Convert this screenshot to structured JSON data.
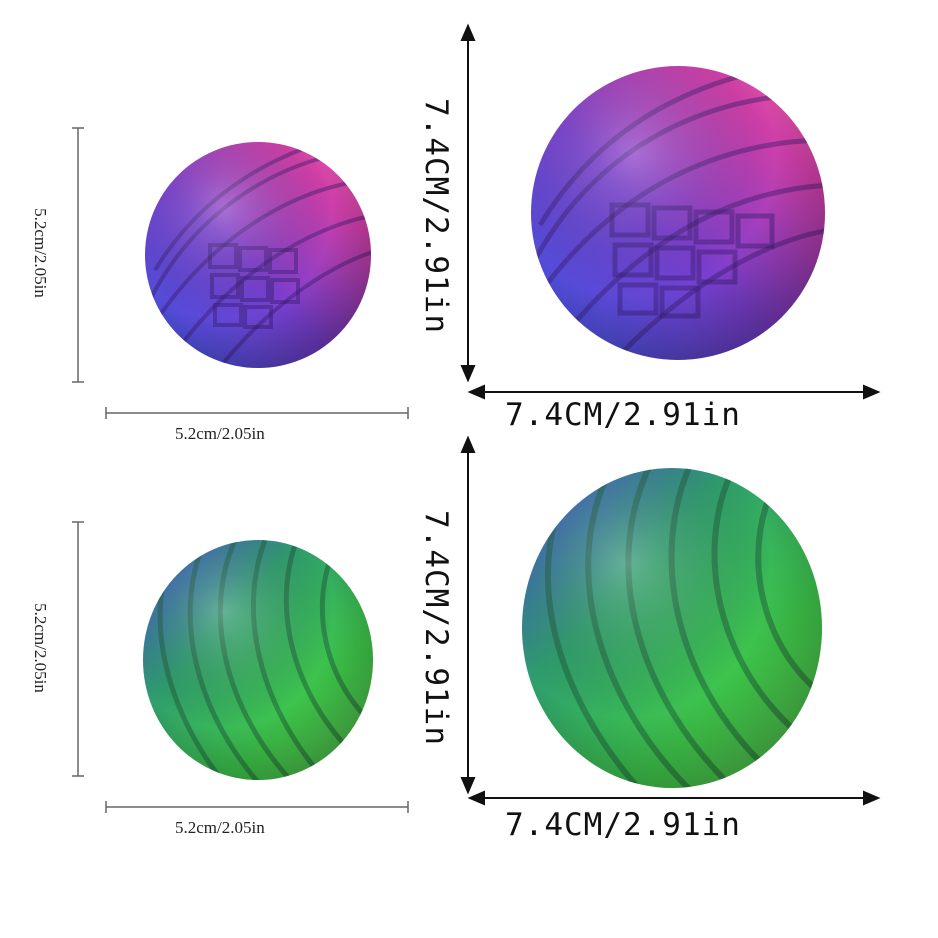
{
  "colors": {
    "background": "#ffffff",
    "purple_ball": [
      "#3a55e0",
      "#7a3fd0",
      "#d23fa8",
      "#f06aa8"
    ],
    "green_ball": [
      "#4450d8",
      "#2f9e6e",
      "#3fc84a",
      "#66e05a"
    ]
  },
  "small_purple": {
    "height_label": "5.2cm/2.05in",
    "width_label": "5.2cm/2.05in"
  },
  "large_purple": {
    "height_label": "7.4CM/2.91in",
    "width_label": "7.4CM/2.91in"
  },
  "small_green": {
    "height_label": "5.2cm/2.05in",
    "width_label": "5.2cm/2.05in"
  },
  "large_green": {
    "height_label": "7.4CM/2.91in",
    "width_label": "7.4CM/2.91in"
  }
}
